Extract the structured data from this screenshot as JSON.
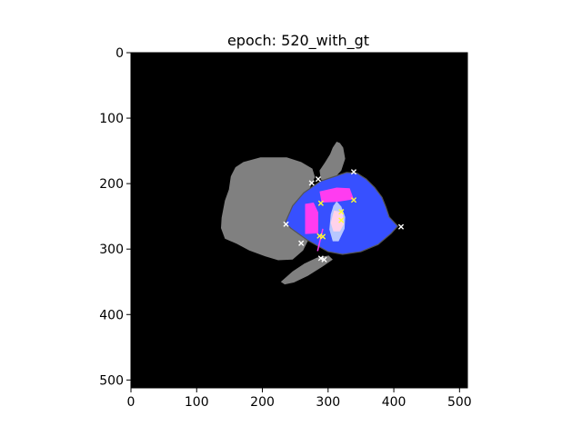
{
  "chart_data": {
    "type": "image",
    "title": "epoch: 520_with_gt",
    "xlim": [
      0,
      512
    ],
    "ylim": [
      512,
      0
    ],
    "xticks": [
      0,
      100,
      200,
      300,
      400,
      500
    ],
    "yticks": [
      0,
      100,
      200,
      300,
      400,
      500
    ],
    "xtick_labels": [
      "0",
      "100",
      "200",
      "300",
      "400",
      "500"
    ],
    "ytick_labels": [
      "0",
      "100",
      "200",
      "300",
      "400",
      "500"
    ],
    "background_color": "#000000",
    "regions": [
      {
        "name": "gray-mass-left",
        "color": "#808080",
        "points": [
          [
            171,
            167
          ],
          [
            197,
            160
          ],
          [
            237,
            160
          ],
          [
            259,
            167
          ],
          [
            276,
            177
          ],
          [
            280,
            190
          ],
          [
            273,
            205
          ],
          [
            264,
            226
          ],
          [
            267,
            248
          ],
          [
            274,
            262
          ],
          [
            271,
            284
          ],
          [
            262,
            302
          ],
          [
            246,
            316
          ],
          [
            224,
            317
          ],
          [
            204,
            311
          ],
          [
            180,
            302
          ],
          [
            161,
            292
          ],
          [
            143,
            284
          ],
          [
            137,
            268
          ],
          [
            138,
            252
          ],
          [
            143,
            226
          ],
          [
            149,
            209
          ],
          [
            152,
            189
          ],
          [
            159,
            175
          ]
        ]
      },
      {
        "name": "gray-lobe-top",
        "color": "#808080",
        "points": [
          [
            289,
            194
          ],
          [
            287,
            180
          ],
          [
            295,
            168
          ],
          [
            303,
            155
          ],
          [
            307,
            145
          ],
          [
            313,
            136
          ],
          [
            318,
            138
          ],
          [
            323,
            145
          ],
          [
            326,
            162
          ],
          [
            320,
            180
          ],
          [
            309,
            192
          ],
          [
            297,
            196
          ]
        ]
      },
      {
        "name": "gray-tail-bottom",
        "color": "#808080",
        "points": [
          [
            228,
            350
          ],
          [
            246,
            334
          ],
          [
            264,
            322
          ],
          [
            283,
            313
          ],
          [
            301,
            310
          ],
          [
            307,
            316
          ],
          [
            291,
            327
          ],
          [
            269,
            341
          ],
          [
            248,
            351
          ],
          [
            234,
            354
          ]
        ]
      },
      {
        "name": "blue-region",
        "color": "#3750ff",
        "points": [
          [
            235,
            259
          ],
          [
            246,
            234
          ],
          [
            263,
            214
          ],
          [
            289,
            196
          ],
          [
            313,
            188
          ],
          [
            328,
            183
          ],
          [
            344,
            184
          ],
          [
            358,
            193
          ],
          [
            371,
            206
          ],
          [
            382,
            221
          ],
          [
            388,
            236
          ],
          [
            393,
            251
          ],
          [
            406,
            265
          ],
          [
            396,
            276
          ],
          [
            376,
            293
          ],
          [
            350,
            304
          ],
          [
            322,
            308
          ],
          [
            300,
            304
          ],
          [
            282,
            294
          ],
          [
            268,
            286
          ],
          [
            254,
            276
          ],
          [
            243,
            268
          ]
        ]
      },
      {
        "name": "magenta-rect-upper",
        "color": "#ff3cf0",
        "points": [
          [
            287,
            212
          ],
          [
            313,
            206
          ],
          [
            333,
            207
          ],
          [
            339,
            224
          ],
          [
            313,
            228
          ],
          [
            290,
            229
          ]
        ]
      },
      {
        "name": "magenta-rect-left",
        "color": "#ff3cf0",
        "points": [
          [
            265,
            231
          ],
          [
            278,
            229
          ],
          [
            285,
            244
          ],
          [
            285,
            276
          ],
          [
            265,
            277
          ]
        ]
      },
      {
        "name": "lightblue-region",
        "color": "#b8c8ff",
        "points": [
          [
            313,
            227
          ],
          [
            320,
            235
          ],
          [
            326,
            251
          ],
          [
            325,
            269
          ],
          [
            316,
            288
          ],
          [
            307,
            288
          ],
          [
            302,
            270
          ],
          [
            304,
            247
          ],
          [
            308,
            234
          ]
        ]
      },
      {
        "name": "pink-region",
        "color": "#ffd2ea",
        "points": [
          [
            309,
            241
          ],
          [
            322,
            244
          ],
          [
            324,
            262
          ],
          [
            318,
            273
          ],
          [
            308,
            273
          ],
          [
            304,
            260
          ]
        ]
      }
    ],
    "outline": {
      "color": "#555555",
      "points": [
        [
          235,
          259
        ],
        [
          246,
          234
        ],
        [
          263,
          214
        ],
        [
          289,
          196
        ],
        [
          313,
          188
        ],
        [
          328,
          183
        ],
        [
          344,
          184
        ],
        [
          358,
          193
        ],
        [
          371,
          206
        ],
        [
          382,
          221
        ],
        [
          388,
          236
        ],
        [
          393,
          251
        ],
        [
          406,
          265
        ],
        [
          396,
          276
        ],
        [
          376,
          293
        ],
        [
          350,
          304
        ],
        [
          322,
          308
        ],
        [
          300,
          304
        ],
        [
          282,
          294
        ],
        [
          268,
          286
        ],
        [
          254,
          276
        ],
        [
          243,
          268
        ]
      ]
    },
    "markers": [
      {
        "series": "white",
        "color": "#ffffff",
        "points": [
          [
            275,
            199
          ],
          [
            285,
            193
          ],
          [
            339,
            182
          ],
          [
            259,
            291
          ],
          [
            289,
            314
          ],
          [
            294,
            316
          ],
          [
            236,
            262
          ],
          [
            411,
            266
          ]
        ]
      },
      {
        "series": "yellow",
        "color": "#ffff32",
        "points": [
          [
            289,
            230
          ],
          [
            339,
            225
          ],
          [
            320,
            243
          ],
          [
            320,
            256
          ],
          [
            287,
            280
          ],
          [
            292,
            281
          ]
        ]
      }
    ],
    "magenta_line": {
      "color": "#ff3cf0",
      "points": [
        [
          284,
          303
        ],
        [
          292,
          269
        ]
      ]
    }
  }
}
